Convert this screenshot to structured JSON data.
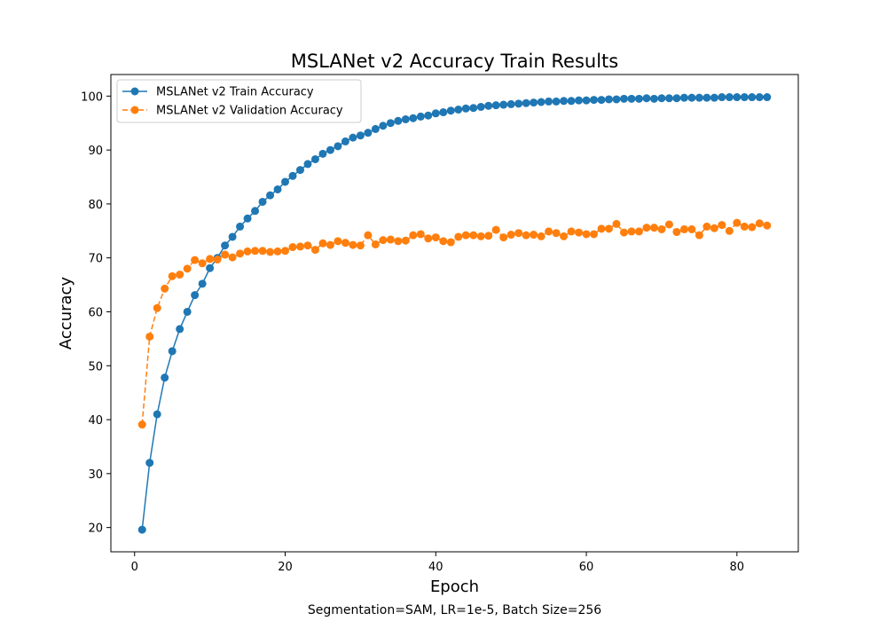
{
  "chart_data": {
    "type": "line",
    "title": "MSLANet v2 Accuracy Train Results",
    "xlabel": "Epoch",
    "ylabel": "Accuracy",
    "caption": "Segmentation=SAM, LR=1e-5, Batch Size=256",
    "xlim": [
      -3.15,
      88.15
    ],
    "ylim": [
      15.5,
      104.0
    ],
    "xticks": [
      0,
      20,
      40,
      60,
      80
    ],
    "yticks": [
      20,
      30,
      40,
      50,
      60,
      70,
      80,
      90,
      100
    ],
    "legend_position": "top-left",
    "series": [
      {
        "name": "MSLANet v2 Train Accuracy",
        "color": "#1f77b4",
        "line_style": "solid",
        "marker": "circle",
        "x": [
          1,
          2,
          3,
          4,
          5,
          6,
          7,
          8,
          9,
          10,
          11,
          12,
          13,
          14,
          15,
          16,
          17,
          18,
          19,
          20,
          21,
          22,
          23,
          24,
          25,
          26,
          27,
          28,
          29,
          30,
          31,
          32,
          33,
          34,
          35,
          36,
          37,
          38,
          39,
          40,
          41,
          42,
          43,
          44,
          45,
          46,
          47,
          48,
          49,
          50,
          51,
          52,
          53,
          54,
          55,
          56,
          57,
          58,
          59,
          60,
          61,
          62,
          63,
          64,
          65,
          66,
          67,
          68,
          69,
          70,
          71,
          72,
          73,
          74,
          75,
          76,
          77,
          78,
          79,
          80,
          81,
          82,
          83,
          84
        ],
        "values": [
          19.6,
          32.0,
          41.0,
          47.8,
          52.7,
          56.8,
          60.0,
          63.1,
          65.2,
          68.1,
          70.0,
          72.3,
          73.9,
          75.8,
          77.3,
          78.7,
          80.4,
          81.6,
          82.7,
          84.1,
          85.2,
          86.3,
          87.4,
          88.3,
          89.3,
          90.0,
          90.7,
          91.6,
          92.3,
          92.7,
          93.2,
          93.9,
          94.5,
          95.0,
          95.4,
          95.7,
          95.9,
          96.2,
          96.4,
          96.8,
          97.0,
          97.3,
          97.5,
          97.7,
          97.8,
          98.0,
          98.2,
          98.3,
          98.4,
          98.5,
          98.6,
          98.7,
          98.8,
          98.9,
          99.0,
          99.0,
          99.1,
          99.1,
          99.2,
          99.2,
          99.3,
          99.3,
          99.4,
          99.4,
          99.5,
          99.5,
          99.5,
          99.6,
          99.5,
          99.6,
          99.6,
          99.6,
          99.7,
          99.7,
          99.7,
          99.7,
          99.7,
          99.8,
          99.8,
          99.8,
          99.8,
          99.8,
          99.8,
          99.8
        ]
      },
      {
        "name": "MSLANet v2 Validation Accuracy",
        "color": "#ff7f0e",
        "line_style": "dashed",
        "marker": "circle",
        "x": [
          1,
          2,
          3,
          4,
          5,
          6,
          7,
          8,
          9,
          10,
          11,
          12,
          13,
          14,
          15,
          16,
          17,
          18,
          19,
          20,
          21,
          22,
          23,
          24,
          25,
          26,
          27,
          28,
          29,
          30,
          31,
          32,
          33,
          34,
          35,
          36,
          37,
          38,
          39,
          40,
          41,
          42,
          43,
          44,
          45,
          46,
          47,
          48,
          49,
          50,
          51,
          52,
          53,
          54,
          55,
          56,
          57,
          58,
          59,
          60,
          61,
          62,
          63,
          64,
          65,
          66,
          67,
          68,
          69,
          70,
          71,
          72,
          73,
          74,
          75,
          76,
          77,
          78,
          79,
          80,
          81,
          82,
          83,
          84
        ],
        "values": [
          39.1,
          55.4,
          60.7,
          64.3,
          66.6,
          66.9,
          68.0,
          69.6,
          69.0,
          69.8,
          69.7,
          70.6,
          70.1,
          70.8,
          71.2,
          71.3,
          71.3,
          71.1,
          71.2,
          71.3,
          72.0,
          72.1,
          72.3,
          71.5,
          72.7,
          72.4,
          73.1,
          72.8,
          72.4,
          72.3,
          74.2,
          72.5,
          73.3,
          73.4,
          73.1,
          73.2,
          74.2,
          74.4,
          73.6,
          73.8,
          73.1,
          72.9,
          73.9,
          74.2,
          74.2,
          74.0,
          74.1,
          75.2,
          73.8,
          74.3,
          74.6,
          74.2,
          74.3,
          74.0,
          74.9,
          74.6,
          74.0,
          74.9,
          74.7,
          74.4,
          74.4,
          75.4,
          75.4,
          76.3,
          74.7,
          74.9,
          74.9,
          75.6,
          75.6,
          75.3,
          76.2,
          74.8,
          75.3,
          75.3,
          74.2,
          75.8,
          75.5,
          76.1,
          75.0,
          76.5,
          75.8,
          75.7,
          76.4,
          76.0
        ]
      }
    ]
  }
}
